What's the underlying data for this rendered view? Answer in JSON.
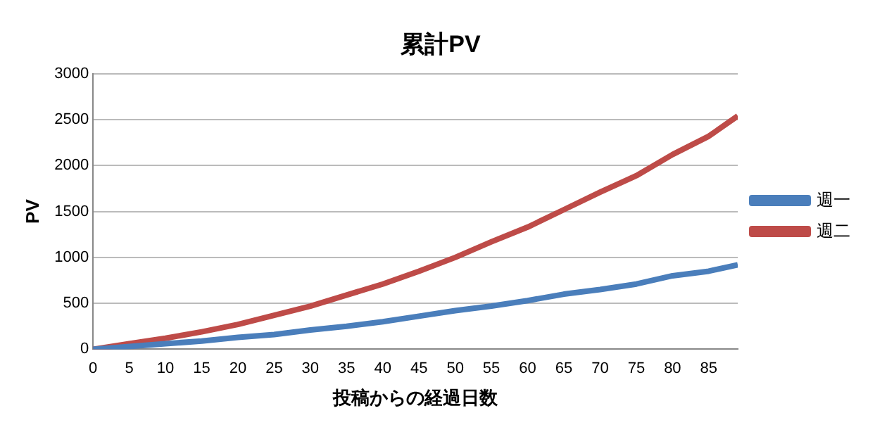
{
  "chart_data": {
    "type": "line",
    "title": "累計PV",
    "xlabel": "投稿からの経過日数",
    "ylabel": "PV",
    "x": [
      0,
      5,
      10,
      15,
      20,
      25,
      30,
      35,
      40,
      45,
      50,
      55,
      60,
      65,
      70,
      75,
      80,
      85,
      89
    ],
    "xlim": [
      0,
      89
    ],
    "xticks": [
      0,
      5,
      10,
      15,
      20,
      25,
      30,
      35,
      40,
      45,
      50,
      55,
      60,
      65,
      70,
      75,
      80,
      85
    ],
    "ylim": [
      0,
      3000
    ],
    "yticks": [
      0,
      500,
      1000,
      1500,
      2000,
      2500,
      3000
    ],
    "grid": "y",
    "legend": "right",
    "marker": "none",
    "line_style": "solid",
    "series": [
      {
        "name": "週一",
        "color": "#4a7ebb",
        "values": [
          0,
          30,
          60,
          90,
          130,
          160,
          210,
          250,
          300,
          360,
          420,
          470,
          530,
          600,
          650,
          710,
          800,
          850,
          920
        ]
      },
      {
        "name": "週二",
        "color": "#be4b48",
        "values": [
          0,
          60,
          120,
          190,
          270,
          370,
          470,
          590,
          710,
          850,
          1000,
          1170,
          1330,
          1520,
          1710,
          1890,
          2120,
          2320,
          2540
        ]
      }
    ]
  }
}
